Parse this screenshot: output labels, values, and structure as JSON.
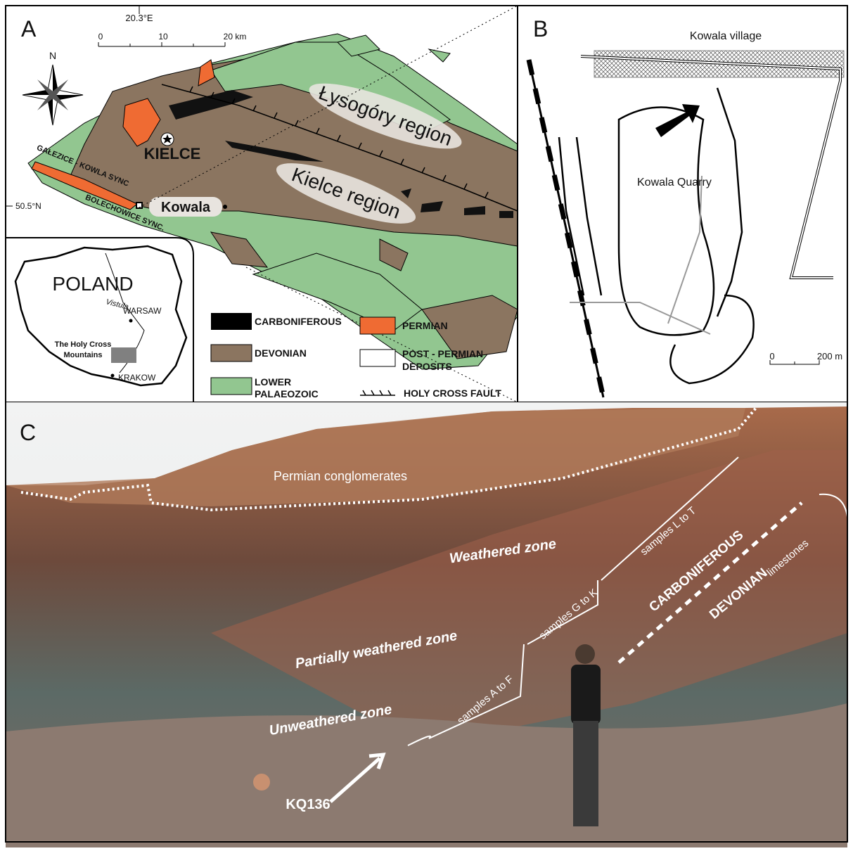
{
  "panel_a": {
    "label": "A",
    "longitude": "20.3°E",
    "latitude": "50.5°N",
    "scale": [
      "0",
      "10",
      "20 km"
    ],
    "north": "N",
    "places": [
      "Łysogóry region",
      "KIELCE",
      "Kielce region",
      "Kowala"
    ],
    "synclines": [
      "GAŁEZICE - KOWLA SYNC",
      "BOLECHOWICE SYNC."
    ],
    "inset": {
      "country": "POLAND",
      "river": "Vistula",
      "cities": [
        "WARSAW",
        "KRAKOW"
      ],
      "area": [
        "The Holy Cross",
        "Mountains"
      ]
    },
    "legend": [
      {
        "lines": [
          "CARBONIFEROUS"
        ]
      },
      {
        "lines": [
          "PERMIAN"
        ]
      },
      {
        "lines": [
          "DEVONIAN"
        ]
      },
      {
        "lines": [
          "POST - PERMIAN",
          "DEPOSITS"
        ]
      },
      {
        "lines": [
          "LOWER",
          "PALAEOZOIC"
        ]
      },
      {
        "lines": [
          "HOLY CROSS FAULT"
        ]
      }
    ]
  },
  "panel_b": {
    "label": "B",
    "village": "Kowala village",
    "quarry": "Kowala Quarry",
    "scale": [
      "0",
      "200 m"
    ]
  },
  "panel_c": {
    "label": "C",
    "units": [
      "Permian conglomerates",
      "Weathered zone",
      "Partially weathered zone",
      "Unweathered zone"
    ],
    "samples": [
      "samples L to T",
      "samples G to K",
      "samples A to F"
    ],
    "boundary": [
      "CARBONIFEROUS",
      "DEVONIAN"
    ],
    "limestones": "limestones",
    "sample_point": "KQ136"
  }
}
